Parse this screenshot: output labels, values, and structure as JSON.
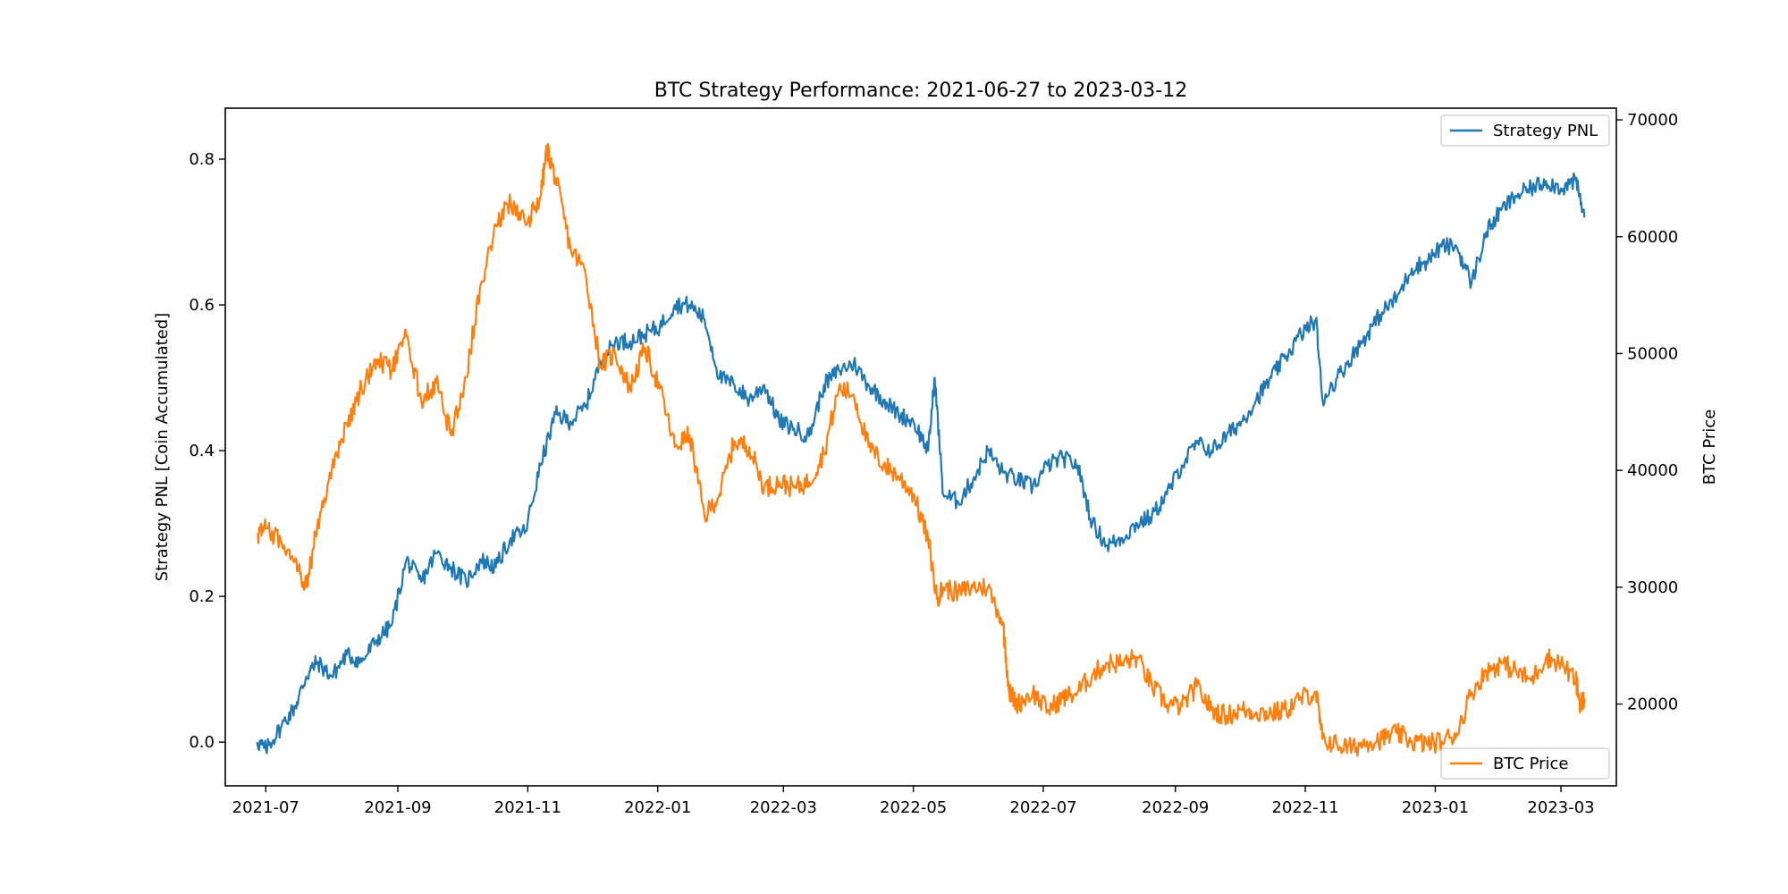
{
  "chart_data": {
    "type": "line",
    "title": "BTC Strategy Performance: 2021-06-27 to 2023-03-12",
    "xlabel": "",
    "y_left_label": "Strategy PNL [Coin Accumulated]",
    "y_right_label": "BTC Price",
    "x_range": [
      "2021-06-12",
      "2023-03-27"
    ],
    "y_left_range": [
      -0.06,
      0.87
    ],
    "y_right_range": [
      13000,
      71000
    ],
    "x_ticks": [
      "2021-07",
      "2021-09",
      "2021-11",
      "2022-01",
      "2022-03",
      "2022-05",
      "2022-07",
      "2022-09",
      "2022-11",
      "2023-01",
      "2023-03"
    ],
    "y_left_ticks": [
      "0.0",
      "0.2",
      "0.4",
      "0.6",
      "0.8"
    ],
    "y_right_ticks": [
      "20000",
      "30000",
      "40000",
      "50000",
      "60000",
      "70000"
    ],
    "grid": false,
    "series": [
      {
        "name": "Strategy PNL",
        "axis": "left",
        "color": "#1f77b4",
        "legend_position": "top-right",
        "points": [
          [
            "2021-06-27",
            0.0
          ],
          [
            "2021-07-01",
            -0.01
          ],
          [
            "2021-07-08",
            0.02
          ],
          [
            "2021-07-15",
            0.05
          ],
          [
            "2021-07-20",
            0.09
          ],
          [
            "2021-07-25",
            0.11
          ],
          [
            "2021-08-01",
            0.09
          ],
          [
            "2021-08-08",
            0.12
          ],
          [
            "2021-08-15",
            0.11
          ],
          [
            "2021-08-22",
            0.14
          ],
          [
            "2021-08-29",
            0.16
          ],
          [
            "2021-09-05",
            0.25
          ],
          [
            "2021-09-12",
            0.22
          ],
          [
            "2021-09-19",
            0.26
          ],
          [
            "2021-09-26",
            0.24
          ],
          [
            "2021-10-03",
            0.22
          ],
          [
            "2021-10-10",
            0.25
          ],
          [
            "2021-10-17",
            0.24
          ],
          [
            "2021-10-24",
            0.28
          ],
          [
            "2021-10-31",
            0.29
          ],
          [
            "2021-11-07",
            0.38
          ],
          [
            "2021-11-14",
            0.45
          ],
          [
            "2021-11-21",
            0.44
          ],
          [
            "2021-11-28",
            0.46
          ],
          [
            "2021-12-05",
            0.52
          ],
          [
            "2021-12-12",
            0.55
          ],
          [
            "2021-12-19",
            0.55
          ],
          [
            "2021-12-26",
            0.56
          ],
          [
            "2022-01-02",
            0.57
          ],
          [
            "2022-01-09",
            0.6
          ],
          [
            "2022-01-16",
            0.6
          ],
          [
            "2022-01-23",
            0.58
          ],
          [
            "2022-01-30",
            0.5
          ],
          [
            "2022-02-06",
            0.49
          ],
          [
            "2022-02-13",
            0.47
          ],
          [
            "2022-02-20",
            0.49
          ],
          [
            "2022-02-27",
            0.44
          ],
          [
            "2022-03-06",
            0.43
          ],
          [
            "2022-03-13",
            0.42
          ],
          [
            "2022-03-20",
            0.49
          ],
          [
            "2022-03-27",
            0.51
          ],
          [
            "2022-04-03",
            0.52
          ],
          [
            "2022-04-10",
            0.49
          ],
          [
            "2022-04-17",
            0.47
          ],
          [
            "2022-04-24",
            0.45
          ],
          [
            "2022-05-01",
            0.44
          ],
          [
            "2022-05-08",
            0.4
          ],
          [
            "2022-05-11",
            0.5
          ],
          [
            "2022-05-15",
            0.34
          ],
          [
            "2022-05-22",
            0.33
          ],
          [
            "2022-05-29",
            0.36
          ],
          [
            "2022-06-05",
            0.4
          ],
          [
            "2022-06-12",
            0.37
          ],
          [
            "2022-06-19",
            0.36
          ],
          [
            "2022-06-26",
            0.35
          ],
          [
            "2022-07-03",
            0.38
          ],
          [
            "2022-07-10",
            0.39
          ],
          [
            "2022-07-17",
            0.38
          ],
          [
            "2022-07-24",
            0.3
          ],
          [
            "2022-07-31",
            0.27
          ],
          [
            "2022-08-07",
            0.28
          ],
          [
            "2022-08-14",
            0.3
          ],
          [
            "2022-08-21",
            0.31
          ],
          [
            "2022-08-28",
            0.34
          ],
          [
            "2022-09-04",
            0.38
          ],
          [
            "2022-09-11",
            0.41
          ],
          [
            "2022-09-18",
            0.4
          ],
          [
            "2022-09-25",
            0.42
          ],
          [
            "2022-10-02",
            0.44
          ],
          [
            "2022-10-09",
            0.47
          ],
          [
            "2022-10-16",
            0.5
          ],
          [
            "2022-10-23",
            0.53
          ],
          [
            "2022-10-30",
            0.56
          ],
          [
            "2022-11-06",
            0.58
          ],
          [
            "2022-11-09",
            0.47
          ],
          [
            "2022-11-16",
            0.5
          ],
          [
            "2022-11-23",
            0.53
          ],
          [
            "2022-11-30",
            0.56
          ],
          [
            "2022-12-07",
            0.59
          ],
          [
            "2022-12-14",
            0.61
          ],
          [
            "2022-12-21",
            0.65
          ],
          [
            "2022-12-28",
            0.66
          ],
          [
            "2023-01-04",
            0.68
          ],
          [
            "2023-01-11",
            0.68
          ],
          [
            "2023-01-18",
            0.63
          ],
          [
            "2023-01-25",
            0.7
          ],
          [
            "2023-02-01",
            0.73
          ],
          [
            "2023-02-08",
            0.75
          ],
          [
            "2023-02-15",
            0.76
          ],
          [
            "2023-02-22",
            0.77
          ],
          [
            "2023-03-01",
            0.76
          ],
          [
            "2023-03-08",
            0.77
          ],
          [
            "2023-03-12",
            0.72
          ]
        ]
      },
      {
        "name": "BTC Price",
        "axis": "right",
        "color": "#ff7f0e",
        "legend_position": "bottom-right",
        "points": [
          [
            "2021-06-27",
            34500
          ],
          [
            "2021-07-01",
            35000
          ],
          [
            "2021-07-08",
            34000
          ],
          [
            "2021-07-15",
            32500
          ],
          [
            "2021-07-20",
            30000
          ],
          [
            "2021-07-25",
            35000
          ],
          [
            "2021-08-01",
            40000
          ],
          [
            "2021-08-08",
            44000
          ],
          [
            "2021-08-15",
            47000
          ],
          [
            "2021-08-22",
            49500
          ],
          [
            "2021-08-29",
            48500
          ],
          [
            "2021-09-05",
            51500
          ],
          [
            "2021-09-12",
            46000
          ],
          [
            "2021-09-19",
            47500
          ],
          [
            "2021-09-26",
            43000
          ],
          [
            "2021-10-03",
            48000
          ],
          [
            "2021-10-10",
            56000
          ],
          [
            "2021-10-17",
            61000
          ],
          [
            "2021-10-24",
            63000
          ],
          [
            "2021-10-31",
            61000
          ],
          [
            "2021-11-07",
            63500
          ],
          [
            "2021-11-10",
            67500
          ],
          [
            "2021-11-14",
            65000
          ],
          [
            "2021-11-21",
            59000
          ],
          [
            "2021-11-28",
            57000
          ],
          [
            "2021-12-05",
            49000
          ],
          [
            "2021-12-12",
            50000
          ],
          [
            "2021-12-19",
            47000
          ],
          [
            "2021-12-26",
            50500
          ],
          [
            "2022-01-02",
            47000
          ],
          [
            "2022-01-09",
            42000
          ],
          [
            "2022-01-16",
            43000
          ],
          [
            "2022-01-23",
            36000
          ],
          [
            "2022-01-30",
            38000
          ],
          [
            "2022-02-06",
            42500
          ],
          [
            "2022-02-13",
            42000
          ],
          [
            "2022-02-20",
            38500
          ],
          [
            "2022-02-27",
            39000
          ],
          [
            "2022-03-06",
            38500
          ],
          [
            "2022-03-13",
            39000
          ],
          [
            "2022-03-20",
            41500
          ],
          [
            "2022-03-27",
            47000
          ],
          [
            "2022-04-03",
            46500
          ],
          [
            "2022-04-10",
            42000
          ],
          [
            "2022-04-17",
            40500
          ],
          [
            "2022-04-24",
            39500
          ],
          [
            "2022-05-01",
            38000
          ],
          [
            "2022-05-08",
            34000
          ],
          [
            "2022-05-12",
            29000
          ],
          [
            "2022-05-15",
            30000
          ],
          [
            "2022-05-22",
            29500
          ],
          [
            "2022-05-29",
            30000
          ],
          [
            "2022-06-05",
            30000
          ],
          [
            "2022-06-12",
            27000
          ],
          [
            "2022-06-15",
            21000
          ],
          [
            "2022-06-19",
            20000
          ],
          [
            "2022-06-26",
            21000
          ],
          [
            "2022-07-03",
            19500
          ],
          [
            "2022-07-10",
            20500
          ],
          [
            "2022-07-17",
            21000
          ],
          [
            "2022-07-24",
            22500
          ],
          [
            "2022-07-31",
            23500
          ],
          [
            "2022-08-07",
            23500
          ],
          [
            "2022-08-14",
            24000
          ],
          [
            "2022-08-21",
            21500
          ],
          [
            "2022-08-28",
            20000
          ],
          [
            "2022-09-04",
            19800
          ],
          [
            "2022-09-11",
            21500
          ],
          [
            "2022-09-18",
            19500
          ],
          [
            "2022-09-25",
            19000
          ],
          [
            "2022-10-02",
            19500
          ],
          [
            "2022-10-09",
            19300
          ],
          [
            "2022-10-16",
            19200
          ],
          [
            "2022-10-23",
            19500
          ],
          [
            "2022-10-30",
            20500
          ],
          [
            "2022-11-06",
            21000
          ],
          [
            "2022-11-09",
            17000
          ],
          [
            "2022-11-16",
            16500
          ],
          [
            "2022-11-23",
            16200
          ],
          [
            "2022-11-30",
            16800
          ],
          [
            "2022-12-07",
            17000
          ],
          [
            "2022-12-14",
            17500
          ],
          [
            "2022-12-21",
            16800
          ],
          [
            "2022-12-28",
            16600
          ],
          [
            "2023-01-04",
            16800
          ],
          [
            "2023-01-11",
            17500
          ],
          [
            "2023-01-18",
            21000
          ],
          [
            "2023-01-25",
            22800
          ],
          [
            "2023-02-01",
            23500
          ],
          [
            "2023-02-08",
            22800
          ],
          [
            "2023-02-15",
            22000
          ],
          [
            "2023-02-22",
            24000
          ],
          [
            "2023-03-01",
            23500
          ],
          [
            "2023-03-08",
            22000
          ],
          [
            "2023-03-10",
            20000
          ],
          [
            "2023-03-12",
            20500
          ]
        ]
      }
    ]
  }
}
